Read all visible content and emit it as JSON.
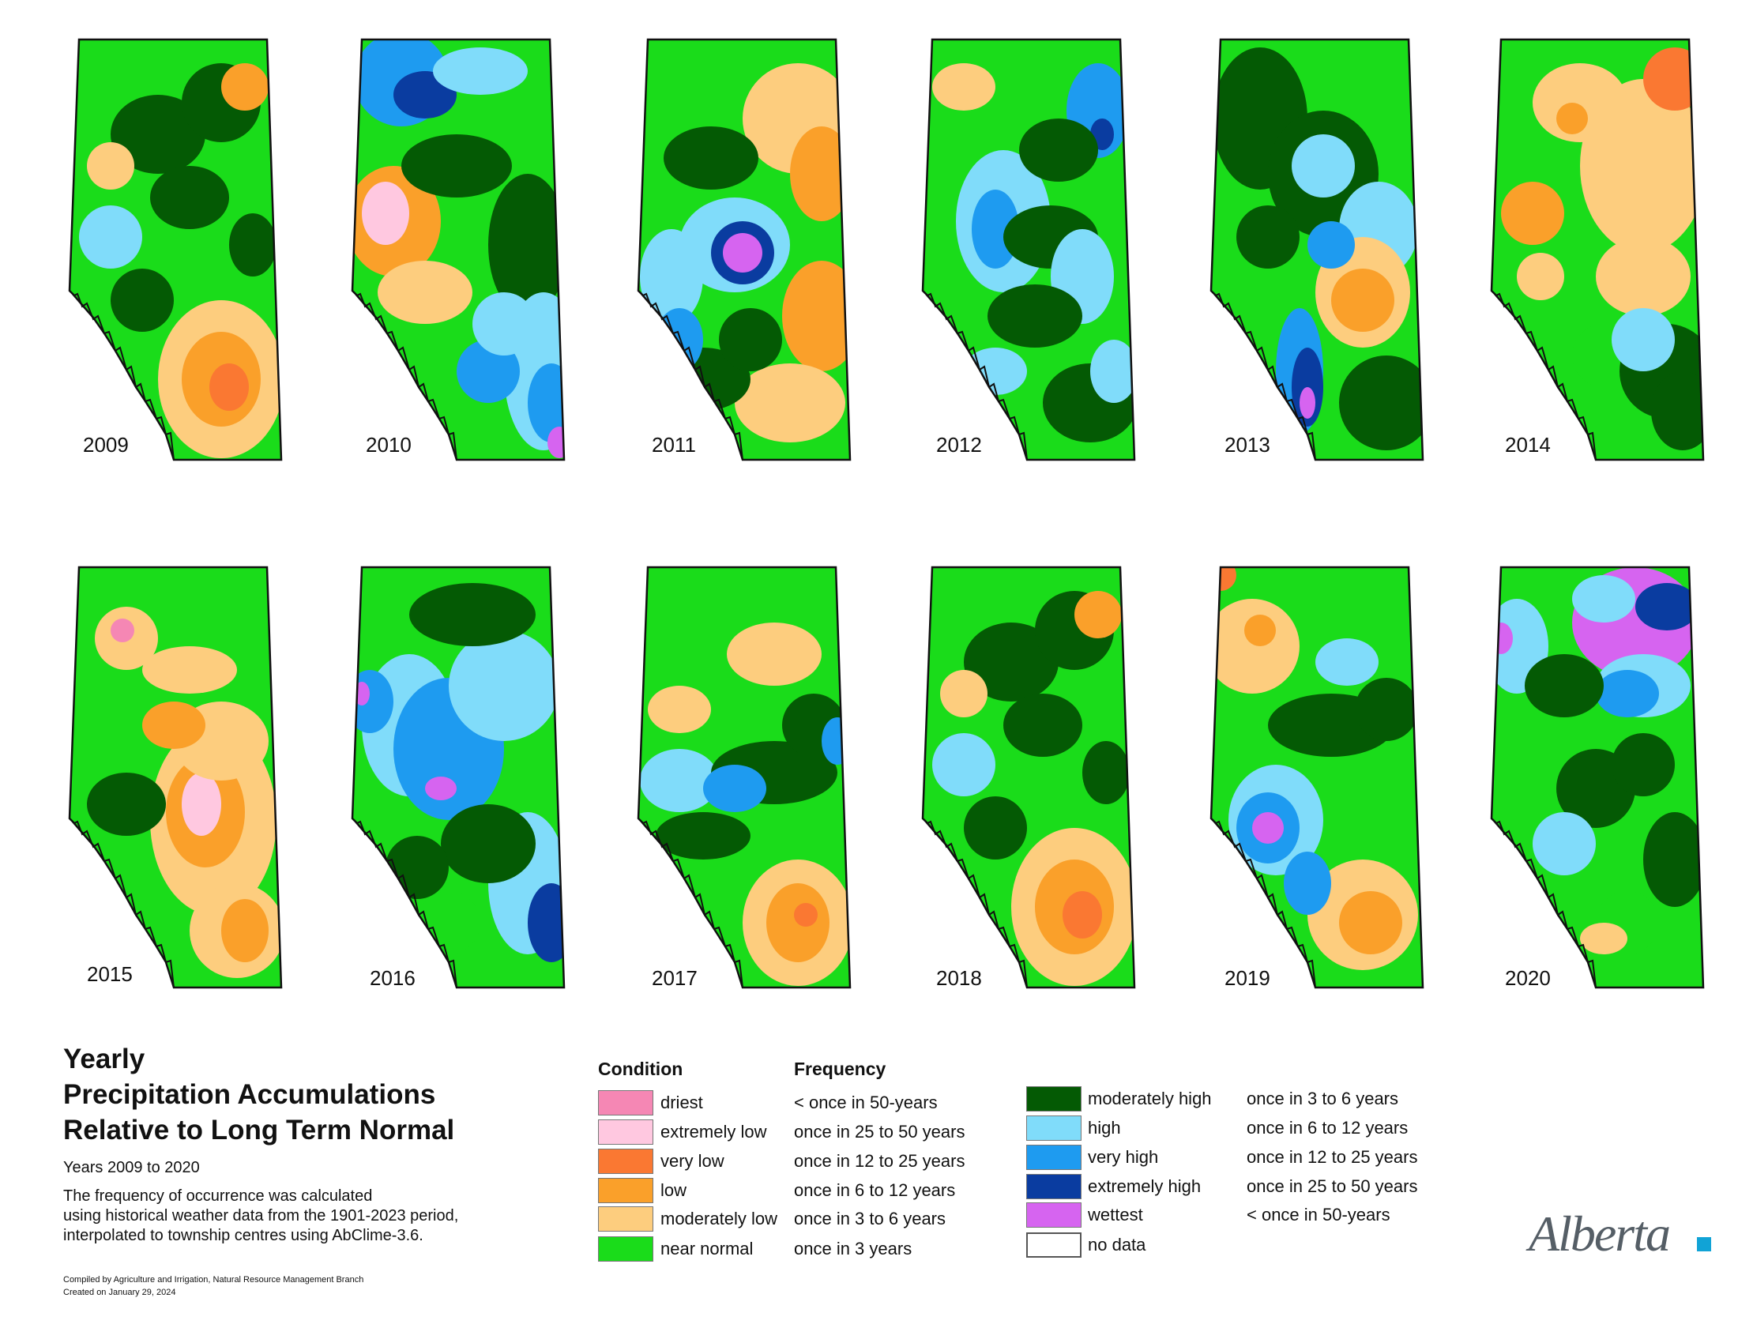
{
  "maps": [
    {
      "year": "2009",
      "theme": "dry-south"
    },
    {
      "year": "2010",
      "theme": "dry-west-wet-east"
    },
    {
      "year": "2011",
      "theme": "mixed-wet-west"
    },
    {
      "year": "2012",
      "theme": "wet-band"
    },
    {
      "year": "2013",
      "theme": "wet-north"
    },
    {
      "year": "2014",
      "theme": "dry-moderate"
    },
    {
      "year": "2015",
      "theme": "dry-center"
    },
    {
      "year": "2016",
      "theme": "wet-west"
    },
    {
      "year": "2017",
      "theme": "dry-south-east"
    },
    {
      "year": "2018",
      "theme": "dry-south"
    },
    {
      "year": "2019",
      "theme": "wet-mid-dry-south"
    },
    {
      "year": "2020",
      "theme": "wettest-north-east"
    }
  ],
  "title": {
    "line1": "Yearly",
    "line2": "Precipitation Accumulations",
    "line3": "Relative to Long Term Normal",
    "subtitle": "Years 2009 to 2020",
    "note_line1": "The frequency of occurrence was calculated",
    "note_line2": "using historical weather data from the 1901-2023 period,",
    "note_line3": "interpolated to township centres using AbClime-3.6."
  },
  "credits": {
    "line1": "Compiled by Agriculture and Irrigation, Natural Resource Management Branch",
    "line2": "Created on January 29, 2024"
  },
  "legend": {
    "condition_header": "Condition",
    "frequency_header": "Frequency",
    "left": [
      {
        "condition": "driest",
        "frequency": "< once in 50-years",
        "color": "#f587b4"
      },
      {
        "condition": "extremely low",
        "frequency": "once in 25 to 50 years",
        "color": "#ffc8e0"
      },
      {
        "condition": "very low",
        "frequency": "once in 12 to 25 years",
        "color": "#fa7832"
      },
      {
        "condition": "low",
        "frequency": "once in 6 to 12 years",
        "color": "#faa02a"
      },
      {
        "condition": "moderately low",
        "frequency": "once in 3 to 6 years",
        "color": "#fdcd7e"
      },
      {
        "condition": "near normal",
        "frequency": "once in 3 years",
        "color": "#1adc1a"
      }
    ],
    "right": [
      {
        "condition": "moderately high",
        "frequency": "once in 3 to 6 years",
        "color": "#045a04"
      },
      {
        "condition": "high",
        "frequency": "once in 6 to 12 years",
        "color": "#80dcfa"
      },
      {
        "condition": "very high",
        "frequency": "once in 12 to 25 years",
        "color": "#1e9bf0"
      },
      {
        "condition": "extremely high",
        "frequency": "once in 25 to 50 years",
        "color": "#0a3ca0"
      },
      {
        "condition": "wettest",
        "frequency": "< once in 50-years",
        "color": "#d664f0"
      },
      {
        "condition": "no data",
        "frequency": "",
        "color": "#ffffff"
      }
    ]
  },
  "logo": {
    "text": "Alberta"
  }
}
